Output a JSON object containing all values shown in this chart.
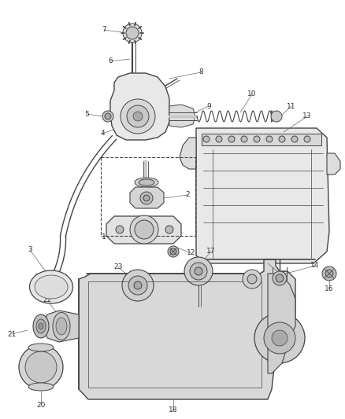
{
  "bg_color": "#ffffff",
  "lc": "#444444",
  "lw": 0.7,
  "fig_w": 4.38,
  "fig_h": 5.33,
  "dpi": 100,
  "label_fs": 6.5,
  "label_color": "#333333"
}
